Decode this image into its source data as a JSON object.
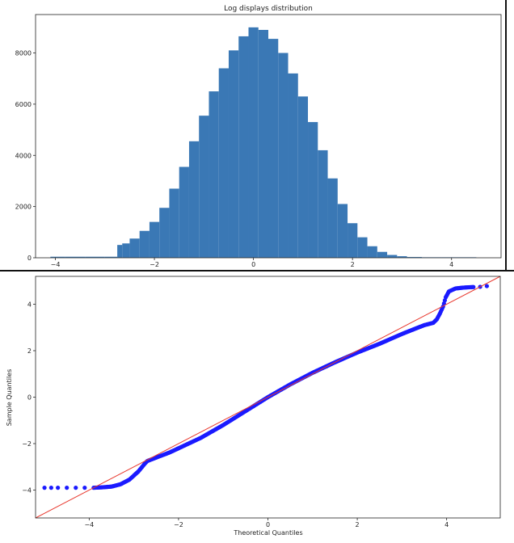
{
  "chart_data": [
    {
      "type": "bar",
      "title": "Log displays distribution",
      "xlabel": "",
      "ylabel": "",
      "xlim": [
        -4.4,
        5.0
      ],
      "ylim": [
        0,
        9500
      ],
      "x_ticks": [
        -4,
        -2,
        0,
        2,
        4
      ],
      "y_ticks": [
        0,
        2000,
        4000,
        6000,
        8000
      ],
      "bin_centers": [
        -4.0,
        -3.6,
        -3.2,
        -2.8,
        -2.7,
        -2.6,
        -2.4,
        -2.2,
        -2.0,
        -1.8,
        -1.6,
        -1.4,
        -1.2,
        -1.0,
        -0.8,
        -0.6,
        -0.4,
        -0.2,
        0.0,
        0.2,
        0.4,
        0.6,
        0.8,
        1.0,
        1.2,
        1.4,
        1.6,
        1.8,
        2.0,
        2.2,
        2.4,
        2.6,
        2.8,
        3.0,
        3.2,
        3.6,
        4.0,
        4.4
      ],
      "counts": [
        40,
        40,
        40,
        40,
        500,
        560,
        750,
        1050,
        1400,
        1950,
        2700,
        3550,
        4550,
        5550,
        6500,
        7400,
        8100,
        8650,
        9000,
        8900,
        8550,
        8000,
        7200,
        6300,
        5300,
        4200,
        3100,
        2100,
        1350,
        800,
        450,
        230,
        110,
        60,
        30,
        20,
        20,
        20
      ],
      "bar_color": "#3a78b5",
      "grid": false
    },
    {
      "type": "scatter",
      "title": "",
      "xlabel": "Theoretical Quantiles",
      "ylabel": "Sample Quantiles",
      "xlim": [
        -5.2,
        5.2
      ],
      "ylim": [
        -5.2,
        5.2
      ],
      "x_ticks": [
        -4,
        -2,
        0,
        2,
        4
      ],
      "y_ticks": [
        -4,
        -2,
        0,
        2,
        4
      ],
      "reference_line": {
        "slope": 1,
        "intercept": 0,
        "color": "#e8392f"
      },
      "point_color": "#1a1aff",
      "points": [
        [
          -5.0,
          -3.9
        ],
        [
          -4.85,
          -3.9
        ],
        [
          -4.7,
          -3.9
        ],
        [
          -4.5,
          -3.9
        ],
        [
          -4.3,
          -3.9
        ],
        [
          -4.1,
          -3.9
        ],
        [
          -3.9,
          -3.9
        ],
        [
          -3.7,
          -3.88
        ],
        [
          -3.5,
          -3.85
        ],
        [
          -3.3,
          -3.75
        ],
        [
          -3.1,
          -3.55
        ],
        [
          -2.9,
          -3.2
        ],
        [
          -2.75,
          -2.85
        ],
        [
          -2.7,
          -2.75
        ],
        [
          -2.5,
          -2.6
        ],
        [
          -2.2,
          -2.38
        ],
        [
          -2.0,
          -2.2
        ],
        [
          -1.5,
          -1.75
        ],
        [
          -1.0,
          -1.2
        ],
        [
          -0.5,
          -0.6
        ],
        [
          0.0,
          0.0
        ],
        [
          0.5,
          0.55
        ],
        [
          1.0,
          1.05
        ],
        [
          1.5,
          1.5
        ],
        [
          2.0,
          1.92
        ],
        [
          2.5,
          2.3
        ],
        [
          3.0,
          2.72
        ],
        [
          3.3,
          2.95
        ],
        [
          3.5,
          3.1
        ],
        [
          3.7,
          3.2
        ],
        [
          3.78,
          3.35
        ],
        [
          3.85,
          3.6
        ],
        [
          3.92,
          3.9
        ],
        [
          3.98,
          4.3
        ],
        [
          4.05,
          4.55
        ],
        [
          4.2,
          4.68
        ],
        [
          4.4,
          4.72
        ],
        [
          4.6,
          4.74
        ],
        [
          4.75,
          4.75
        ],
        [
          4.9,
          4.78
        ]
      ],
      "grid": false
    }
  ]
}
